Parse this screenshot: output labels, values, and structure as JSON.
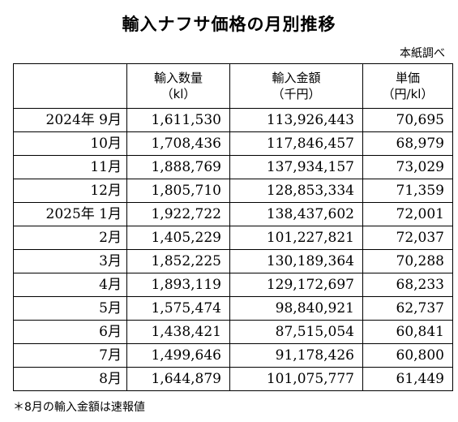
{
  "title": "輸入ナフサ価格の月別推移",
  "source": "本紙調べ",
  "columns": [
    {
      "name": "輸入数量",
      "unit": "（kl）"
    },
    {
      "name": "輸入金額",
      "unit": "（千円）"
    },
    {
      "name": "単価",
      "unit": "（円/kl）"
    }
  ],
  "rows": [
    {
      "month": "2024年 9月",
      "volume": "1,611,530",
      "amount": "113,926,443",
      "price": "70,695"
    },
    {
      "month": "10月",
      "volume": "1,708,436",
      "amount": "117,846,457",
      "price": "68,979"
    },
    {
      "month": "11月",
      "volume": "1,888,769",
      "amount": "137,934,157",
      "price": "73,029"
    },
    {
      "month": "12月",
      "volume": "1,805,710",
      "amount": "128,853,334",
      "price": "71,359"
    },
    {
      "month": "2025年 1月",
      "volume": "1,922,722",
      "amount": "138,437,602",
      "price": "72,001"
    },
    {
      "month": "2月",
      "volume": "1,405,229",
      "amount": "101,227,821",
      "price": "72,037"
    },
    {
      "month": "3月",
      "volume": "1,852,225",
      "amount": "130,189,364",
      "price": "70,288"
    },
    {
      "month": "4月",
      "volume": "1,893,119",
      "amount": "129,172,697",
      "price": "68,233"
    },
    {
      "month": "5月",
      "volume": "1,575,474",
      "amount": "98,840,921",
      "price": "62,737"
    },
    {
      "month": "6月",
      "volume": "1,438,421",
      "amount": "87,515,054",
      "price": "60,841"
    },
    {
      "month": "7月",
      "volume": "1,499,646",
      "amount": "91,178,426",
      "price": "60,800"
    },
    {
      "month": "8月",
      "volume": "1,644,879",
      "amount": "101,075,777",
      "price": "61,449"
    }
  ],
  "note": "＊8月の輸入金額は速報値"
}
